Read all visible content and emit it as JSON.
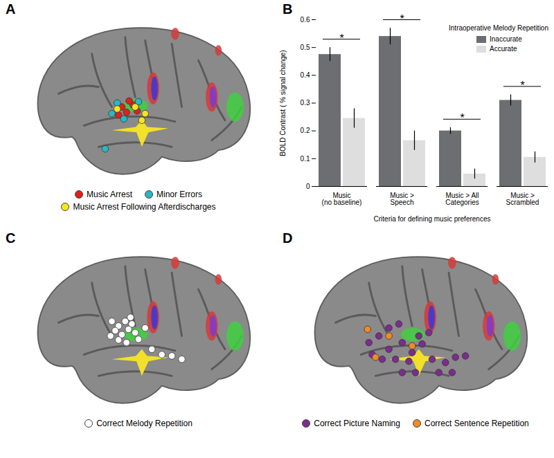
{
  "panels": [
    {
      "label": "A",
      "legend": [
        {
          "name": "Music Arrest",
          "color": "#e0201b"
        },
        {
          "name": "Minor Errors",
          "color": "#2bb6c4"
        },
        {
          "name": "Music Arrest Following Afterdischarges",
          "color": "#f4e521"
        }
      ]
    },
    {
      "label": "B"
    },
    {
      "label": "C",
      "legend": [
        {
          "name": "Correct Melody Repetition",
          "color": "#ffffff"
        }
      ]
    },
    {
      "label": "D",
      "legend": [
        {
          "name": "Correct Picture Naming",
          "color": "#7b2d8e"
        },
        {
          "name": "Correct Sentence Repetition",
          "color": "#f08a24"
        }
      ]
    }
  ],
  "chart_data": {
    "type": "bar",
    "categories": [
      "Music\n(no baseline)",
      "Music >\nSpeech",
      "Music > All\nCategories",
      "Music >\nScrambled"
    ],
    "series": [
      {
        "name": "Inaccurate",
        "color": "#6d6e71",
        "values": [
          0.475,
          0.54,
          0.2,
          0.31
        ],
        "errors": [
          0.025,
          0.03,
          0.012,
          0.02
        ]
      },
      {
        "name": "Accurate",
        "color": "#dedede",
        "values": [
          0.245,
          0.165,
          0.045,
          0.105
        ],
        "errors": [
          0.035,
          0.035,
          0.018,
          0.02
        ]
      }
    ],
    "significance": [
      "*",
      "*",
      "*",
      "*"
    ],
    "legend_title": "Intraoperative Melody Repetition",
    "legend": "top-right",
    "xlabel": "Criteria for defining music preferences",
    "ylabel": "BOLD Contrast ( % signal change)",
    "ylim": [
      0,
      0.6
    ],
    "yticks": [
      0,
      0.1,
      0.2,
      0.3,
      0.4,
      0.5,
      0.6
    ]
  }
}
